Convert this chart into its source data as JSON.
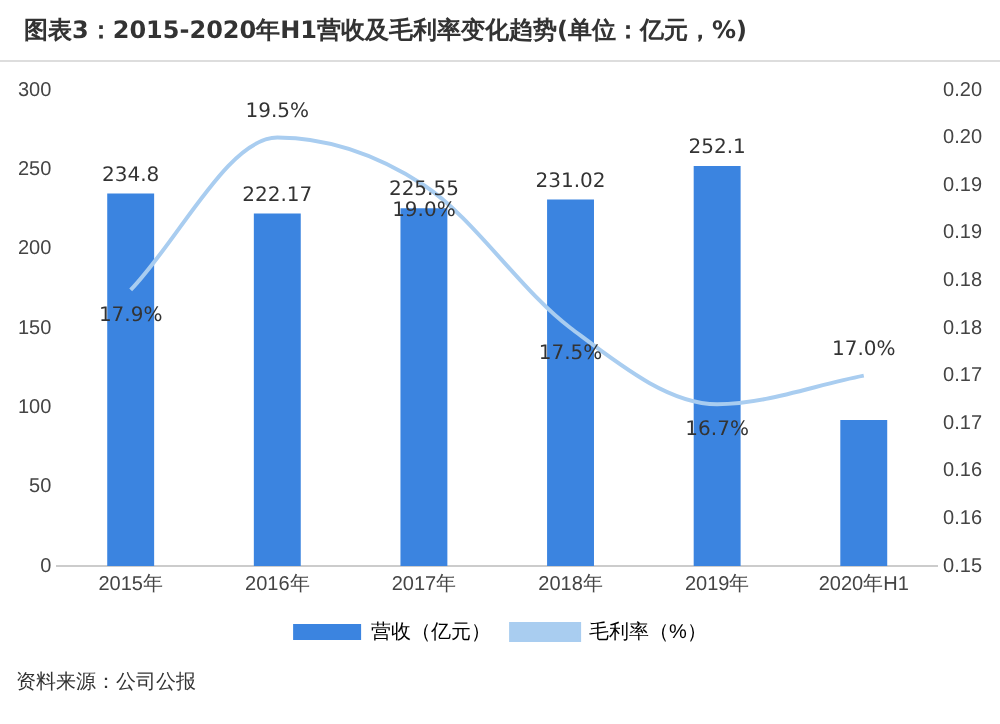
{
  "chart_data": {
    "type": "bar",
    "title": "图表3：2015-2020年H1营收及毛利率变化趋势(单位：亿元，%)",
    "categories": [
      "2015年",
      "2016年",
      "2017年",
      "2018年",
      "2019年",
      "2020年H1"
    ],
    "series": [
      {
        "name": "营收（亿元）",
        "color": "#3b84e0",
        "values": [
          234.8,
          222.17,
          225.55,
          231.02,
          252.1,
          92
        ],
        "value_labels": [
          "234.8",
          "222.17",
          "225.55",
          "231.02",
          "252.1",
          null
        ]
      },
      {
        "name": "毛利率（%）",
        "type": "line",
        "axis": "y2",
        "color": "#a9cdf0",
        "values": [
          0.179,
          0.195,
          0.19,
          0.175,
          0.167,
          0.17
        ],
        "value_labels": [
          "17.9%",
          "19.5%",
          "19.0%",
          "17.5%",
          "16.7%",
          "17.0%"
        ]
      }
    ],
    "ylim": [
      0,
      300
    ],
    "yticks": [
      0,
      50,
      100,
      150,
      200,
      250,
      300
    ],
    "y2lim": [
      0.15,
      0.2
    ],
    "y2ticks": [
      {
        "value": 0.15,
        "label": "0.15"
      },
      {
        "value": 0.155,
        "label": "0.16"
      },
      {
        "value": 0.16,
        "label": "0.16"
      },
      {
        "value": 0.165,
        "label": "0.17"
      },
      {
        "value": 0.17,
        "label": "0.17"
      },
      {
        "value": 0.175,
        "label": "0.18"
      },
      {
        "value": 0.18,
        "label": "0.18"
      },
      {
        "value": 0.185,
        "label": "0.19"
      },
      {
        "value": 0.19,
        "label": "0.19"
      },
      {
        "value": 0.195,
        "label": "0.20"
      },
      {
        "value": 0.2,
        "label": "0.20"
      }
    ],
    "grid": false,
    "legend": "bottom",
    "marker": "none",
    "annotations": [
      "资料来源：公司公报"
    ]
  }
}
